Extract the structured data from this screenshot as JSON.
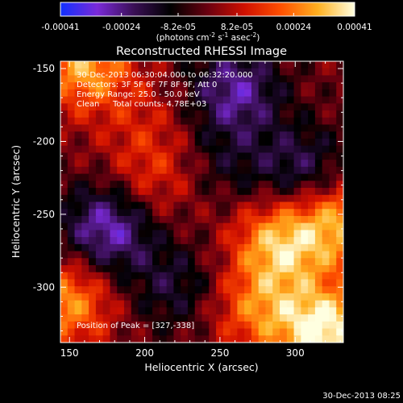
{
  "colorbar": {
    "tick_labels": [
      "-0.00041",
      "-0.00024",
      "-8.2e-05",
      "8.2e-05",
      "0.00024",
      "0.00041"
    ],
    "tick_values": [
      -0.00041,
      -0.00024,
      -8.2e-05,
      8.2e-05,
      0.00024,
      0.00041
    ],
    "range": [
      -0.00041,
      0.00041
    ],
    "unit_prefix": "(photons cm",
    "unit_exp1": "-2",
    "unit_mid": " s",
    "unit_exp2": "-1",
    "unit_mid2": " asec",
    "unit_exp3": "-2",
    "unit_suffix": ")",
    "colors": [
      "#1030ff",
      "#7a2ad8",
      "#3a0f55",
      "#000000",
      "#6a0010",
      "#d01000",
      "#ff5000",
      "#ffb020",
      "#ffffe0"
    ]
  },
  "chart_data": {
    "type": "heatmap",
    "title": "Reconstructed RHESSI Image",
    "xlabel": "Heliocentric X (arcsec)",
    "ylabel": "Heliocentric Y (arcsec)",
    "xlim": [
      144,
      332
    ],
    "ylim": [
      -338,
      -145
    ],
    "x_ticks": [
      150,
      200,
      250,
      300
    ],
    "y_ticks": [
      -150,
      -200,
      -250,
      -300
    ],
    "peak_position": [
      327,
      -338
    ],
    "sources": [
      {
        "x": 290,
        "y": -270,
        "value": 0.00032
      },
      {
        "x": 330,
        "y": -255,
        "value": 0.00028
      },
      {
        "x": 320,
        "y": -330,
        "value": 0.00041
      },
      {
        "x": 275,
        "y": -315,
        "value": 0.00022
      },
      {
        "x": 205,
        "y": -225,
        "value": 0.00014
      },
      {
        "x": 160,
        "y": -148,
        "value": 0.0003
      },
      {
        "x": 148,
        "y": -310,
        "value": 0.00028
      },
      {
        "x": 175,
        "y": -260,
        "value": -0.0003
      },
      {
        "x": 260,
        "y": -165,
        "value": -0.00026
      },
      {
        "x": 305,
        "y": -220,
        "value": -0.0002
      },
      {
        "x": 220,
        "y": -300,
        "value": -0.00015
      },
      {
        "x": 200,
        "y": -185,
        "value": 8e-05
      },
      {
        "x": 255,
        "y": -215,
        "value": -0.0001
      }
    ]
  },
  "annotations": {
    "time_range": "30-Dec-2013 06:30:04.000 to 06:32:20.000",
    "detectors": "Detectors: 3F 5F 6F 7F 8F 9F, Att 0",
    "energy_range": "Energy Range: 25.0 - 50.0 keV",
    "method": "Clean",
    "total_counts": "Total counts: 4.78E+03",
    "peak_label": "Position of Peak = [327,-338]"
  },
  "footer": {
    "timestamp": "30-Dec-2013 08:25"
  }
}
